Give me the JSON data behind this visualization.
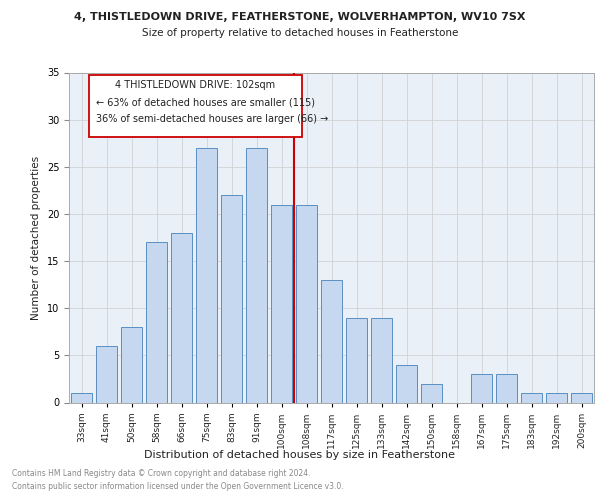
{
  "title1": "4, THISTLEDOWN DRIVE, FEATHERSTONE, WOLVERHAMPTON, WV10 7SX",
  "title2": "Size of property relative to detached houses in Featherstone",
  "xlabel": "Distribution of detached houses by size in Featherstone",
  "ylabel": "Number of detached properties",
  "categories": [
    "33sqm",
    "41sqm",
    "50sqm",
    "58sqm",
    "66sqm",
    "75sqm",
    "83sqm",
    "91sqm",
    "100sqm",
    "108sqm",
    "117sqm",
    "125sqm",
    "133sqm",
    "142sqm",
    "150sqm",
    "158sqm",
    "167sqm",
    "175sqm",
    "183sqm",
    "192sqm",
    "200sqm"
  ],
  "values": [
    1,
    6,
    8,
    17,
    18,
    27,
    22,
    27,
    21,
    21,
    13,
    9,
    9,
    4,
    2,
    0,
    3,
    3,
    1,
    1,
    1
  ],
  "bar_color": "#c5d8f0",
  "bar_edge_color": "#5a8fc3",
  "property_line_idx": 8,
  "property_line_label": "4 THISTLEDOWN DRIVE: 102sqm",
  "annotation_line1": "← 63% of detached houses are smaller (115)",
  "annotation_line2": "36% of semi-detached houses are larger (66) →",
  "annotation_box_color": "#cc0000",
  "ylim": [
    0,
    35
  ],
  "yticks": [
    0,
    5,
    10,
    15,
    20,
    25,
    30,
    35
  ],
  "grid_color": "#cccccc",
  "ax_bg_color": "#eaf0f8",
  "footnote1": "Contains HM Land Registry data © Crown copyright and database right 2024.",
  "footnote2": "Contains public sector information licensed under the Open Government Licence v3.0."
}
